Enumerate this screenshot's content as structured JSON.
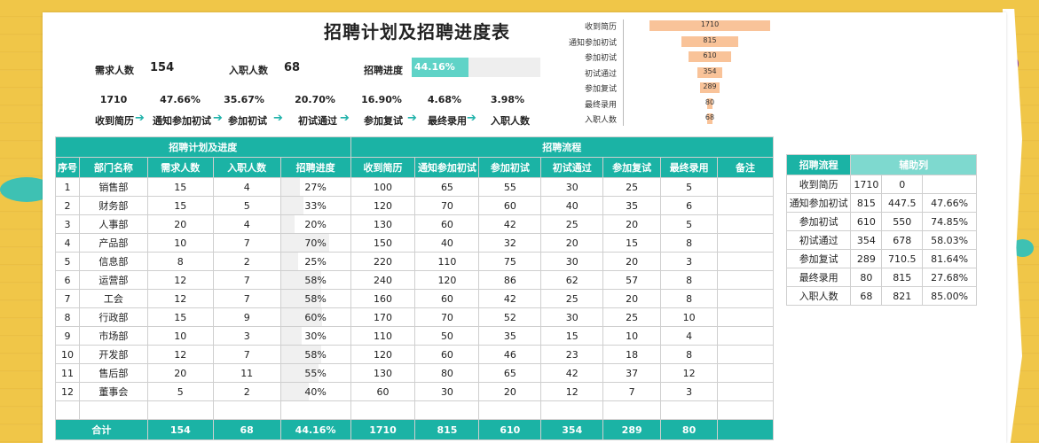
{
  "title": "招聘计划及招聘进度表",
  "kpi": {
    "demand_label": "需求人数",
    "demand_value": "154",
    "hired_label": "入职人数",
    "hired_value": "68",
    "progress_label": "招聘进度",
    "progress_text": "44.16%",
    "progress_value": 0.4416
  },
  "flow": {
    "percents": [
      "1710",
      "47.66%",
      "35.67%",
      "20.70%",
      "16.90%",
      "4.68%",
      "3.98%"
    ],
    "labels": [
      "收到简历",
      "通知参加初试",
      "参加初试",
      "初试通过",
      "参加复试",
      "最终录用",
      "入职人数"
    ],
    "arrow": "➔"
  },
  "funnel": [
    {
      "label": "收到简历",
      "value": 1710
    },
    {
      "label": "通知参加初试",
      "value": 815
    },
    {
      "label": "参加初试",
      "value": 610
    },
    {
      "label": "初试通过",
      "value": 354
    },
    {
      "label": "参加复试",
      "value": 289
    },
    {
      "label": "最终录用",
      "value": 80
    },
    {
      "label": "入职人数",
      "value": 68
    }
  ],
  "main_table": {
    "group1": "招聘计划及进度",
    "group2": "招聘流程",
    "headers": [
      "序号",
      "部门名称",
      "需求人数",
      "入职人数",
      "招聘进度",
      "收到简历",
      "通知参加初试",
      "参加初试",
      "初试通过",
      "参加复试",
      "最终录用",
      "备注"
    ],
    "rows": [
      [
        "1",
        "销售部",
        "15",
        "4",
        "27%",
        "100",
        "65",
        "55",
        "30",
        "25",
        "5",
        ""
      ],
      [
        "2",
        "财务部",
        "15",
        "5",
        "33%",
        "120",
        "70",
        "60",
        "40",
        "35",
        "6",
        ""
      ],
      [
        "3",
        "人事部",
        "20",
        "4",
        "20%",
        "130",
        "60",
        "42",
        "25",
        "20",
        "5",
        ""
      ],
      [
        "4",
        "产品部",
        "10",
        "7",
        "70%",
        "150",
        "40",
        "32",
        "20",
        "15",
        "8",
        ""
      ],
      [
        "5",
        "信息部",
        "8",
        "2",
        "25%",
        "220",
        "110",
        "75",
        "30",
        "20",
        "3",
        ""
      ],
      [
        "6",
        "运营部",
        "12",
        "7",
        "58%",
        "240",
        "120",
        "86",
        "62",
        "57",
        "8",
        ""
      ],
      [
        "7",
        "工会",
        "12",
        "7",
        "58%",
        "160",
        "60",
        "42",
        "25",
        "20",
        "8",
        ""
      ],
      [
        "8",
        "行政部",
        "15",
        "9",
        "60%",
        "170",
        "70",
        "52",
        "30",
        "25",
        "10",
        ""
      ],
      [
        "9",
        "市场部",
        "10",
        "3",
        "30%",
        "110",
        "50",
        "35",
        "15",
        "10",
        "4",
        ""
      ],
      [
        "10",
        "开发部",
        "12",
        "7",
        "58%",
        "120",
        "60",
        "46",
        "23",
        "18",
        "8",
        ""
      ],
      [
        "11",
        "售后部",
        "20",
        "11",
        "55%",
        "130",
        "80",
        "65",
        "42",
        "37",
        "12",
        ""
      ],
      [
        "12",
        "董事会",
        "5",
        "2",
        "40%",
        "60",
        "30",
        "20",
        "12",
        "7",
        "3",
        ""
      ]
    ],
    "progress_values": [
      0.27,
      0.33,
      0.2,
      0.7,
      0.25,
      0.58,
      0.58,
      0.6,
      0.3,
      0.58,
      0.55,
      0.4
    ],
    "total": [
      "合计",
      "154",
      "68",
      "44.16%",
      "1710",
      "815",
      "610",
      "354",
      "289",
      "80",
      ""
    ]
  },
  "side_table": {
    "headers": [
      "招聘流程",
      "辅助列"
    ],
    "rows": [
      [
        "收到简历",
        "1710",
        "0",
        ""
      ],
      [
        "通知参加初试",
        "815",
        "447.5",
        "47.66%"
      ],
      [
        "参加初试",
        "610",
        "550",
        "74.85%"
      ],
      [
        "初试通过",
        "354",
        "678",
        "58.03%"
      ],
      [
        "参加复试",
        "289",
        "710.5",
        "81.64%"
      ],
      [
        "最终录用",
        "80",
        "815",
        "27.68%"
      ],
      [
        "入职人数",
        "68",
        "821",
        "85.00%"
      ]
    ]
  }
}
